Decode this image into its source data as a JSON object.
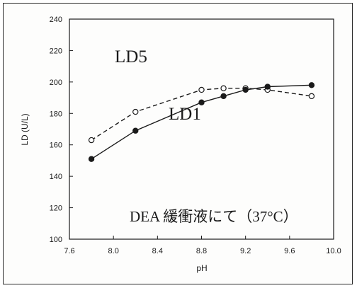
{
  "chart_data": {
    "type": "line",
    "xlabel": "pH",
    "ylabel": "LD (U/L)",
    "xlim": [
      7.6,
      10.0
    ],
    "ylim": [
      100,
      240
    ],
    "x_ticks": [
      "7.6",
      "8.0",
      "8.4",
      "8.8",
      "9.2",
      "9.6",
      "10.0"
    ],
    "y_ticks": [
      "100",
      "120",
      "140",
      "160",
      "180",
      "200",
      "220",
      "240"
    ],
    "grid": false,
    "series": [
      {
        "name": "LD5",
        "style": "dashed",
        "marker": "open-circle",
        "x": [
          7.8,
          8.2,
          8.8,
          9.0,
          9.2,
          9.4,
          9.8
        ],
        "y": [
          163,
          181,
          195,
          196,
          196,
          195,
          191
        ]
      },
      {
        "name": "LD1",
        "style": "solid",
        "marker": "filled-circle",
        "x": [
          7.8,
          8.2,
          8.8,
          9.0,
          9.2,
          9.4,
          9.8
        ],
        "y": [
          151,
          169,
          187,
          191,
          195,
          197,
          198
        ]
      }
    ],
    "annotations": [
      {
        "text": "LD5"
      },
      {
        "text": "LD1"
      },
      {
        "text": "DEA 緩衝液にて（37°C）"
      }
    ]
  }
}
